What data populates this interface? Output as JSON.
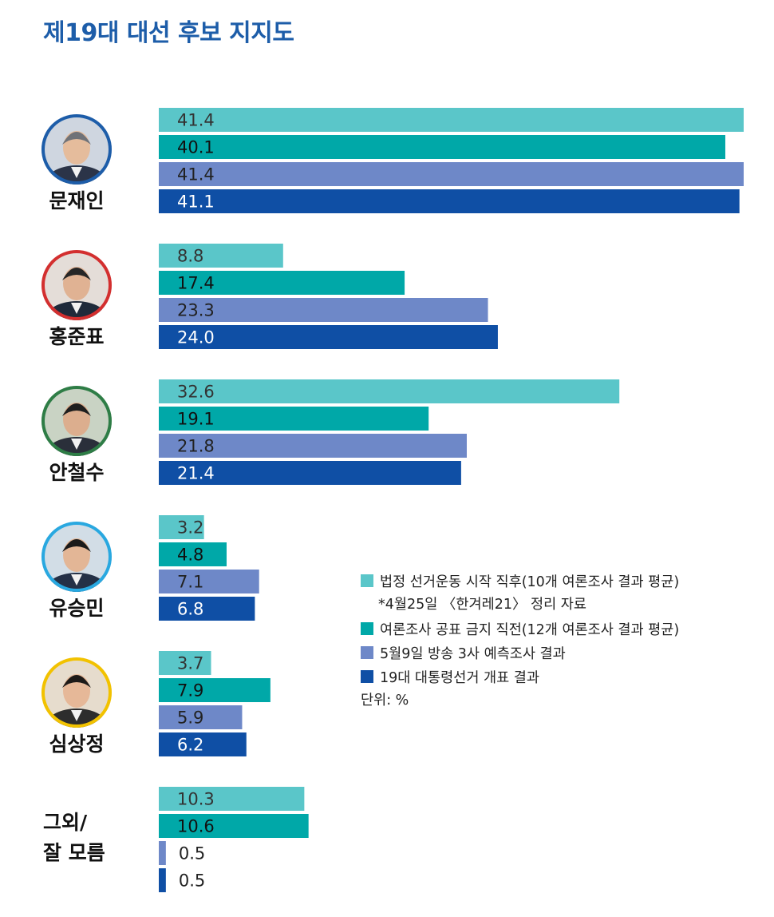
{
  "chart_data": {
    "type": "bar",
    "orientation": "horizontal",
    "title": "제19대 대선 후보 지지도",
    "categories": [
      "문재인",
      "홍준표",
      "안철수",
      "유승민",
      "심상정",
      "그외/\n잘 모름"
    ],
    "series": [
      {
        "name": "법정 선거운동 시작 직후(10개 여론조사 결과 평균)",
        "color": "#5ac6c9",
        "values": [
          41.4,
          8.8,
          32.6,
          3.2,
          3.7,
          10.3
        ]
      },
      {
        "name": "여론조사 공표 금지 직전(12개 여론조사 결과 평균)",
        "color": "#00a8a8",
        "values": [
          40.1,
          17.4,
          19.1,
          4.8,
          7.9,
          10.6
        ]
      },
      {
        "name": "5월9일 방송 3사 예측조사 결과",
        "color": "#6e88c8",
        "values": [
          41.4,
          23.3,
          21.8,
          7.1,
          5.9,
          0.5
        ]
      },
      {
        "name": "19대 대통령선거 개표 결과",
        "color": "#0f4fa5",
        "values": [
          41.1,
          24.0,
          21.4,
          6.8,
          6.2,
          0.5
        ]
      }
    ],
    "value_labels": [
      [
        "41.4",
        "40.1",
        "41.4",
        "41.1"
      ],
      [
        "8.8",
        "17.4",
        "23.3",
        "24.0"
      ],
      [
        "32.6",
        "19.1",
        "21.8",
        "21.4"
      ],
      [
        "3.2",
        "4.8",
        "7.1",
        "6.8"
      ],
      [
        "3.7",
        "7.9",
        "5.9",
        "6.2"
      ],
      [
        "10.3",
        "10.6",
        "0.5",
        "0.5"
      ]
    ],
    "avatars": [
      {
        "ring": "#1d5da9",
        "bg": "#cfd6e0",
        "skin": "#e5bc9c",
        "hair": "#6f7278",
        "suit": "#2b3448"
      },
      {
        "ring": "#d32f2f",
        "bg": "#e4ddd8",
        "skin": "#e0b293",
        "hair": "#262626",
        "suit": "#1f2a3a"
      },
      {
        "ring": "#2e7d46",
        "bg": "#c9d3c4",
        "skin": "#dcae8e",
        "hair": "#1e1e1e",
        "suit": "#2a2f3a"
      },
      {
        "ring": "#29a8e0",
        "bg": "#d2dde6",
        "skin": "#e3b696",
        "hair": "#1a1a1a",
        "suit": "#243046"
      },
      {
        "ring": "#f2c200",
        "bg": "#e6dccd",
        "skin": "#e6b898",
        "hair": "#1d1a18",
        "suit": "#2d2d2d"
      }
    ],
    "xlim": [
      0,
      41.4
    ],
    "grid": false,
    "legend_position": "right-middle",
    "legend_note": "*4월25일 〈한겨레21〉 정리 자료",
    "unit_label": "단위: %"
  }
}
